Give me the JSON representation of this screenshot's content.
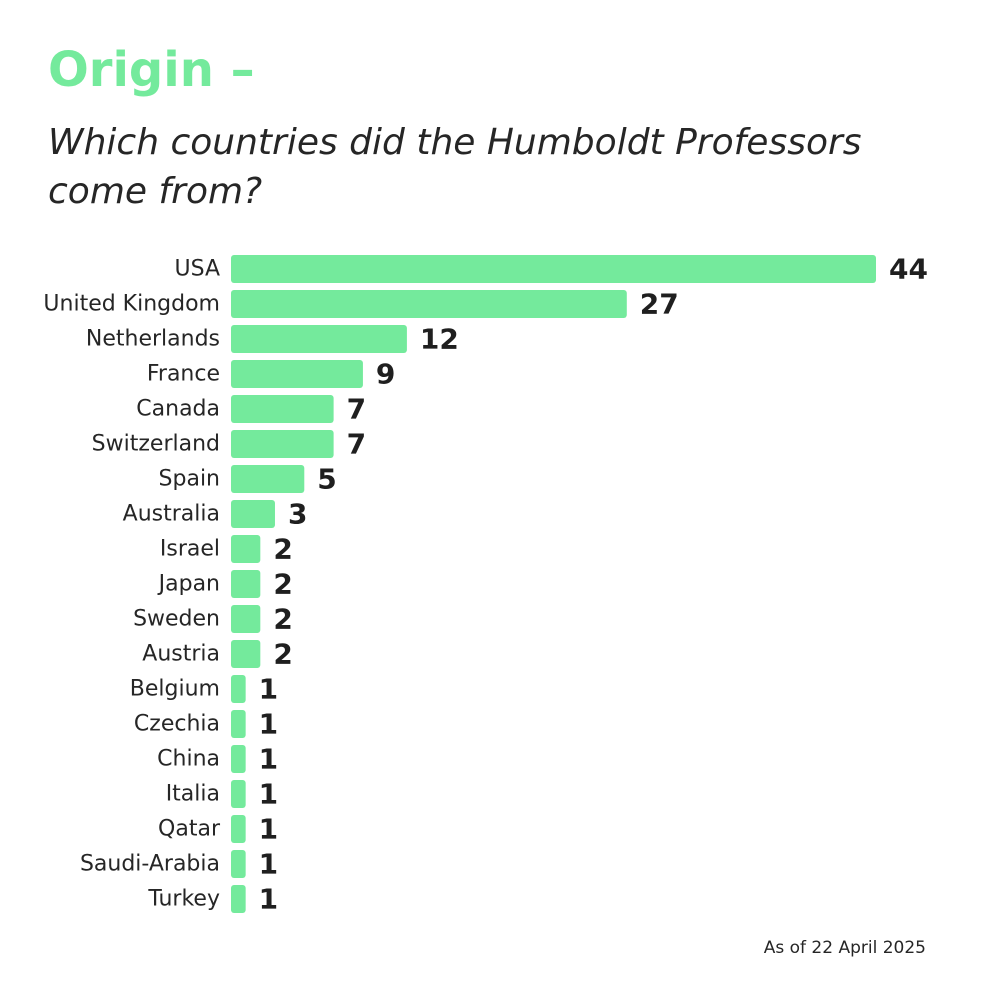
{
  "header": {
    "title": "Origin –",
    "subtitle": "Which countries did the Humboldt Professors come from?"
  },
  "footnote": "As of 22 April 2025",
  "colors": {
    "accent": "#74ea9c",
    "bar": "#74ea9c",
    "text": "#262626"
  },
  "chart_data": {
    "type": "bar",
    "orientation": "horizontal",
    "categories": [
      "USA",
      "United Kingdom",
      "Netherlands",
      "France",
      "Canada",
      "Switzerland",
      "Spain",
      "Australia",
      "Israel",
      "Japan",
      "Sweden",
      "Austria",
      "Belgium",
      "Czechia",
      "China",
      "Italia",
      "Qatar",
      "Saudi-Arabia",
      "Turkey"
    ],
    "values": [
      44,
      27,
      12,
      9,
      7,
      7,
      5,
      3,
      2,
      2,
      2,
      2,
      1,
      1,
      1,
      1,
      1,
      1,
      1
    ],
    "title": "Origin –",
    "subtitle": "Which countries did the Humboldt Professors come from?",
    "xlabel": "",
    "ylabel": "",
    "xlim": [
      0,
      44
    ],
    "grid": false,
    "legend": "none",
    "data_labels": true
  }
}
